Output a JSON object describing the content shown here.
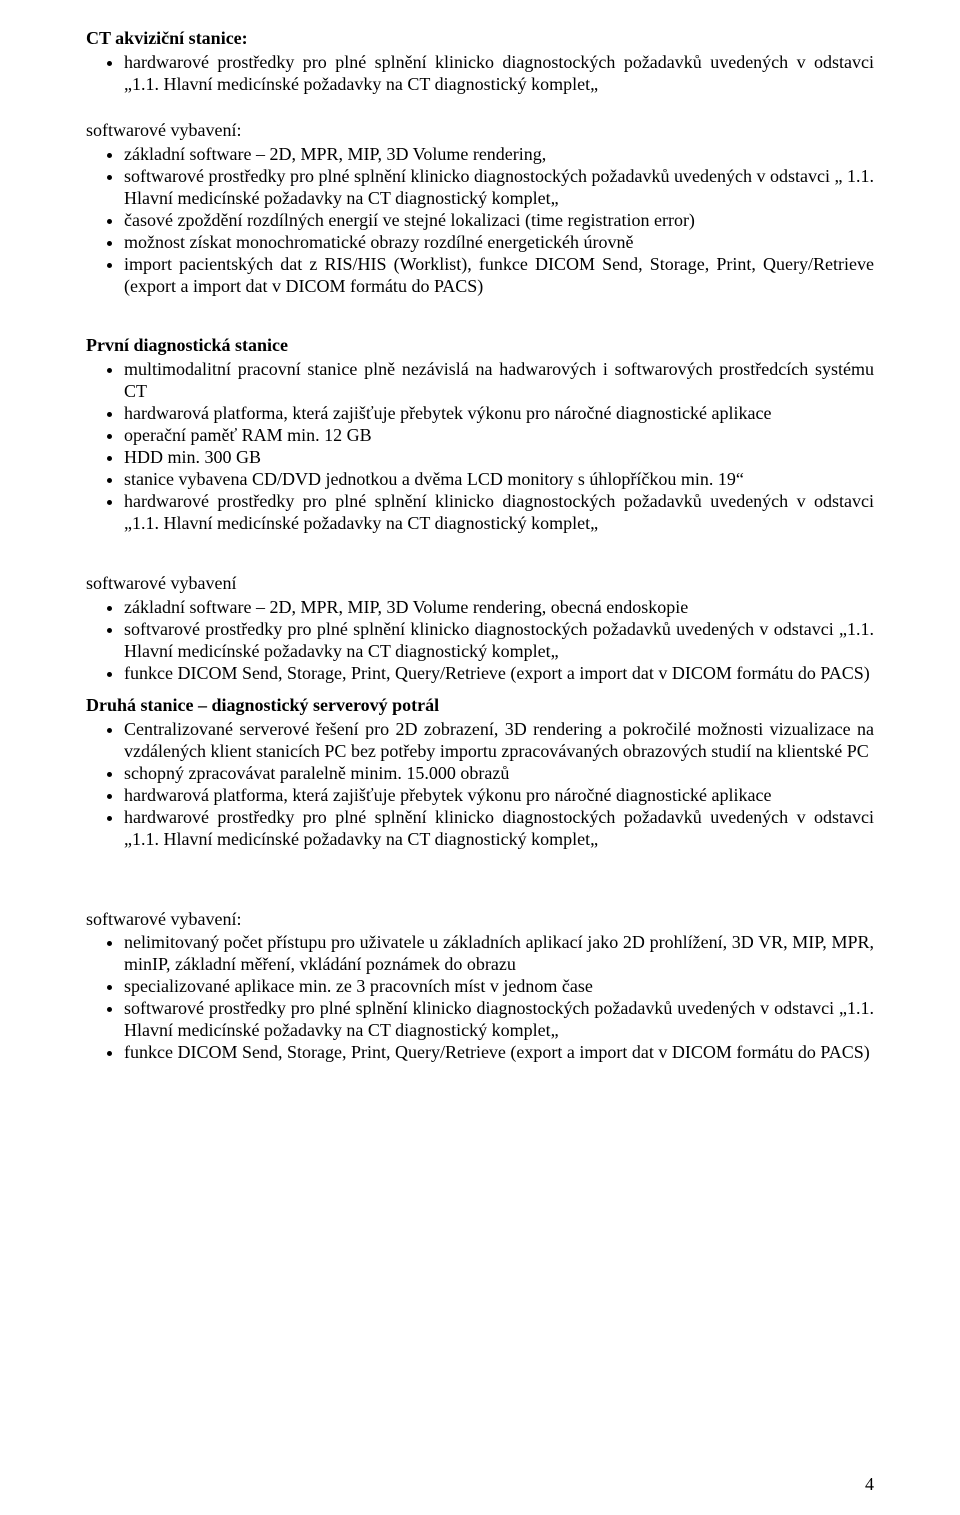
{
  "sec1": {
    "title": "CT akviziční stanice:",
    "items": [
      "hardwarové prostředky pro plné splnění klinicko diagnostockých požadavků uvedených v odstavci „1.1. Hlavní medicínské požadavky na CT diagnostický komplet„"
    ]
  },
  "sec2": {
    "title": "softwarové vybavení:",
    "items": [
      "základní software – 2D, MPR, MIP, 3D Volume rendering,",
      "softwarové prostředky pro plné splnění klinicko diagnostockých požadavků uvedených v odstavci „ 1.1. Hlavní medicínské požadavky na CT diagnostický komplet„",
      "časové zpoždění rozdílných energií ve stejné lokalizaci (time registration error)",
      "možnost získat monochromatické obrazy rozdílné energetickéh úrovně",
      "import pacientských dat z RIS/HIS (Worklist), funkce DICOM Send, Storage, Print, Query/Retrieve (export a import dat v DICOM formátu do PACS)"
    ]
  },
  "sec3": {
    "title": "První diagnostická stanice",
    "items": [
      "multimodalitní pracovní stanice plně nezávislá na hadwarových i softwarových prostředcích systému CT",
      "hardwarová platforma, která zajišťuje přebytek výkonu pro náročné diagnostické aplikace",
      "operační paměť RAM min. 12 GB",
      "HDD min. 300 GB",
      "stanice vybavena CD/DVD jednotkou a dvěma LCD monitory s úhlopříčkou min. 19“",
      "hardwarové prostředky pro plné splnění klinicko diagnostockých požadavků uvedených v odstavci „1.1. Hlavní medicínské požadavky na CT diagnostický komplet„"
    ]
  },
  "sec4": {
    "title": "softwarové vybavení",
    "items": [
      "základní software – 2D, MPR, MIP, 3D Volume rendering, obecná endoskopie",
      "softvarové prostředky pro plné splnění klinicko diagnostockých požadavků uvedených v odstavci „1.1. Hlavní medicínské požadavky na CT diagnostický komplet„",
      "funkce DICOM Send, Storage, Print, Query/Retrieve (export a import dat v DICOM formátu do PACS)"
    ]
  },
  "sec5": {
    "title": "Druhá stanice – diagnostický serverový potrál",
    "items": [
      "Centralizované serverové řešení pro 2D zobrazení, 3D rendering a pokročilé možnosti vizualizace na vzdálených klient stanicích PC bez potřeby importu zpracovávaných obrazových studií na klientské PC",
      "schopný zpracovávat paralelně minim. 15.000 obrazů",
      "hardwarová platforma, která zajišťuje přebytek výkonu pro náročné diagnostické aplikace",
      "hardwarové prostředky pro plné splnění klinicko diagnostockých požadavků uvedených v odstavci „1.1. Hlavní medicínské požadavky na CT diagnostický komplet„"
    ]
  },
  "sec6": {
    "title": "softwarové vybavení:",
    "items": [
      "nelimitovaný počet přístupu pro uživatele u základních aplikací jako 2D prohlížení, 3D VR, MIP, MPR, minIP, základní měření, vkládání poznámek do obrazu",
      "specializované aplikace min. ze 3 pracovních míst v jednom čase",
      "softwarové prostředky pro plné splnění klinicko diagnostockých požadavků uvedených v odstavci „1.1. Hlavní medicínské požadavky na CT diagnostický komplet„",
      "funkce DICOM Send, Storage, Print, Query/Retrieve (export a import dat v DICOM formátu do PACS)"
    ]
  },
  "pageNumber": "4"
}
